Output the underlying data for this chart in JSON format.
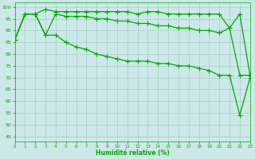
{
  "title": "",
  "xlabel": "Humidité relative (%)",
  "ylabel": "",
  "background_color": "#cce8e8",
  "grid_color": "#aacccc",
  "line_color": "#00aa00",
  "xlim": [
    0,
    23
  ],
  "ylim": [
    43,
    102
  ],
  "yticks": [
    45,
    50,
    55,
    60,
    65,
    70,
    75,
    80,
    85,
    90,
    95,
    100
  ],
  "xticks": [
    0,
    1,
    2,
    3,
    4,
    5,
    6,
    7,
    8,
    9,
    10,
    11,
    12,
    13,
    14,
    15,
    16,
    17,
    18,
    19,
    20,
    21,
    22,
    23
  ],
  "series": [
    [
      86,
      97,
      97,
      99,
      98,
      98,
      98,
      98,
      98,
      98,
      98,
      98,
      97,
      98,
      98,
      97,
      97,
      97,
      97,
      97,
      97,
      91,
      97,
      71
    ],
    [
      86,
      97,
      97,
      88,
      97,
      96,
      96,
      96,
      95,
      95,
      94,
      94,
      93,
      93,
      92,
      92,
      91,
      91,
      90,
      90,
      89,
      91,
      71,
      71
    ],
    [
      86,
      97,
      97,
      88,
      88,
      85,
      83,
      82,
      80,
      79,
      78,
      77,
      77,
      77,
      76,
      76,
      75,
      75,
      74,
      73,
      71,
      71,
      54,
      70
    ]
  ],
  "marker": "+",
  "markersize": 4,
  "linewidth": 0.9,
  "figwidth": 3.2,
  "figheight": 2.0,
  "dpi": 100
}
